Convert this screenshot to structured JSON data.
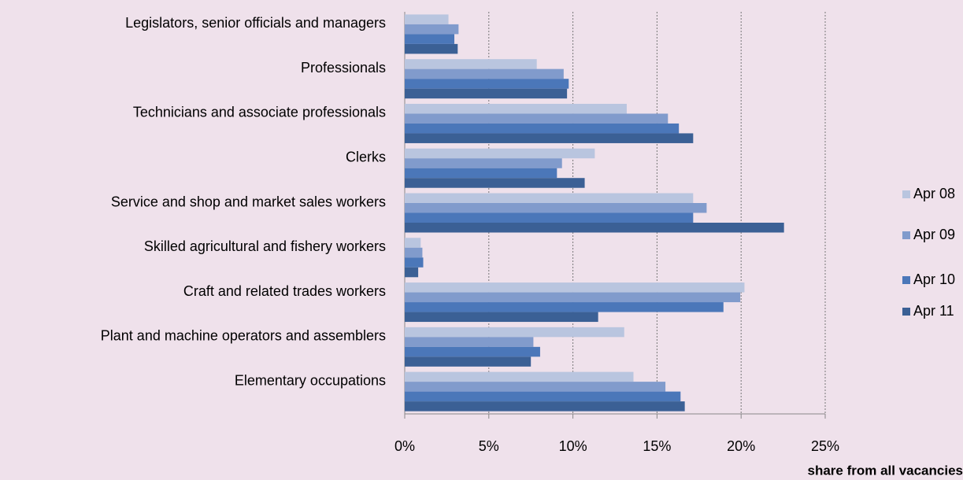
{
  "chart_data": {
    "type": "bar",
    "orientation": "horizontal",
    "x_label": "share from all vacancies",
    "categories": [
      "Legislators, senior officials and managers",
      "Professionals",
      "Technicians and associate professionals",
      "Clerks",
      "Service and shop and market sales workers",
      "Skilled agricultural and fishery workers",
      "Craft and related trades workers",
      "Plant and machine operators and assemblers",
      "Elementary occupations"
    ],
    "series": [
      {
        "name": "Apr 08",
        "color": "#b9c5df",
        "values": [
          2.6,
          7.85,
          13.2,
          11.3,
          17.15,
          0.95,
          20.2,
          13.05,
          13.6
        ]
      },
      {
        "name": "Apr 09",
        "color": "#819bcc",
        "values": [
          3.2,
          9.45,
          15.65,
          9.35,
          17.95,
          1.05,
          19.95,
          7.65,
          15.5
        ]
      },
      {
        "name": "Apr 10",
        "color": "#4b77b9",
        "values": [
          2.95,
          9.75,
          16.3,
          9.05,
          17.15,
          1.1,
          18.95,
          8.05,
          16.4
        ]
      },
      {
        "name": "Apr 11",
        "color": "#3b6095",
        "values": [
          3.15,
          9.65,
          17.15,
          10.7,
          22.55,
          0.8,
          11.5,
          7.5,
          16.65
        ]
      }
    ],
    "xlim": [
      0,
      25
    ],
    "xticks": [
      {
        "value": 0,
        "label": "0%"
      },
      {
        "value": 5,
        "label": "5%"
      },
      {
        "value": 10,
        "label": "10%"
      },
      {
        "value": 15,
        "label": "15%"
      },
      {
        "value": 20,
        "label": "20%"
      },
      {
        "value": 25,
        "label": "25%"
      }
    ],
    "grid": true,
    "legend": "right"
  }
}
